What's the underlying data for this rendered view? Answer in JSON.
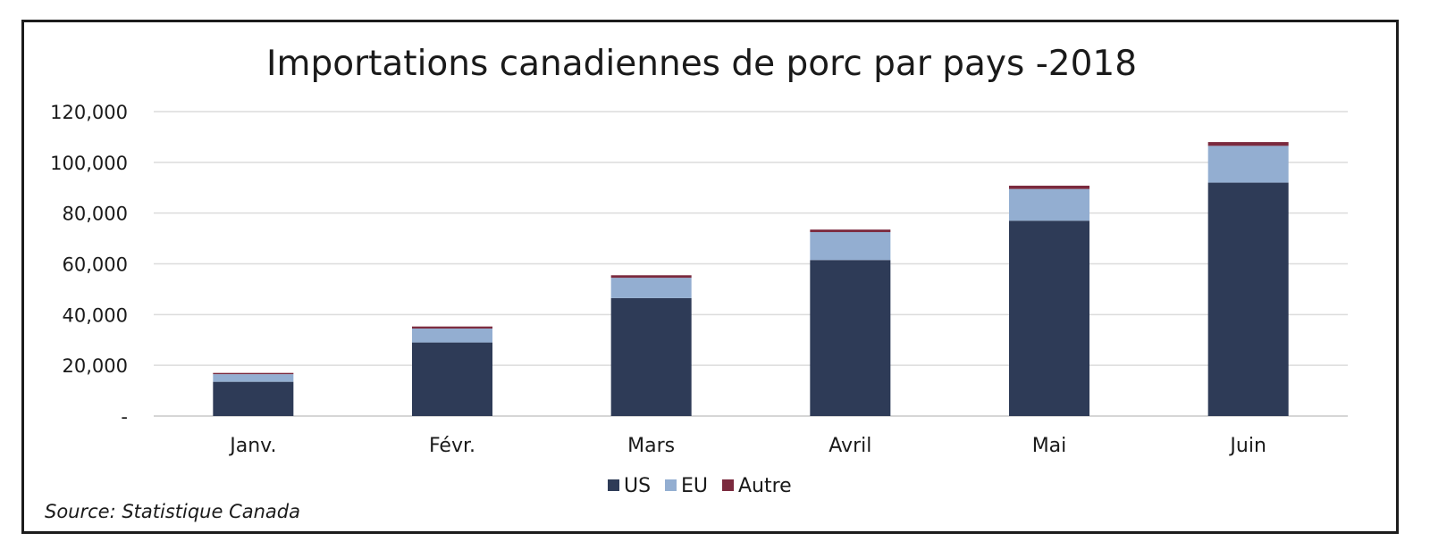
{
  "chart_data": {
    "type": "bar",
    "stacked": true,
    "title": "Importations canadiennes de porc par pays -2018",
    "categories": [
      "Janv.",
      "Févr.",
      "Mars",
      "Avril",
      "Mai",
      "Juin"
    ],
    "series": [
      {
        "name": "US",
        "color": "#2e3b57",
        "values": [
          13500,
          29000,
          46500,
          61500,
          77000,
          92000
        ]
      },
      {
        "name": "EU",
        "color": "#93aed1",
        "values": [
          3000,
          5500,
          8000,
          11000,
          12500,
          14500
        ]
      },
      {
        "name": "Autre",
        "color": "#7b2a3e",
        "values": [
          500,
          800,
          1000,
          1000,
          1300,
          1500
        ]
      }
    ],
    "yticks": [
      "-",
      "20,000",
      "40,000",
      "60,000",
      "80,000",
      "100,000",
      "120,000"
    ],
    "ylim": [
      0,
      120000
    ],
    "grid": true,
    "legend": "bottom"
  },
  "source": "Source: Statistique Canada"
}
